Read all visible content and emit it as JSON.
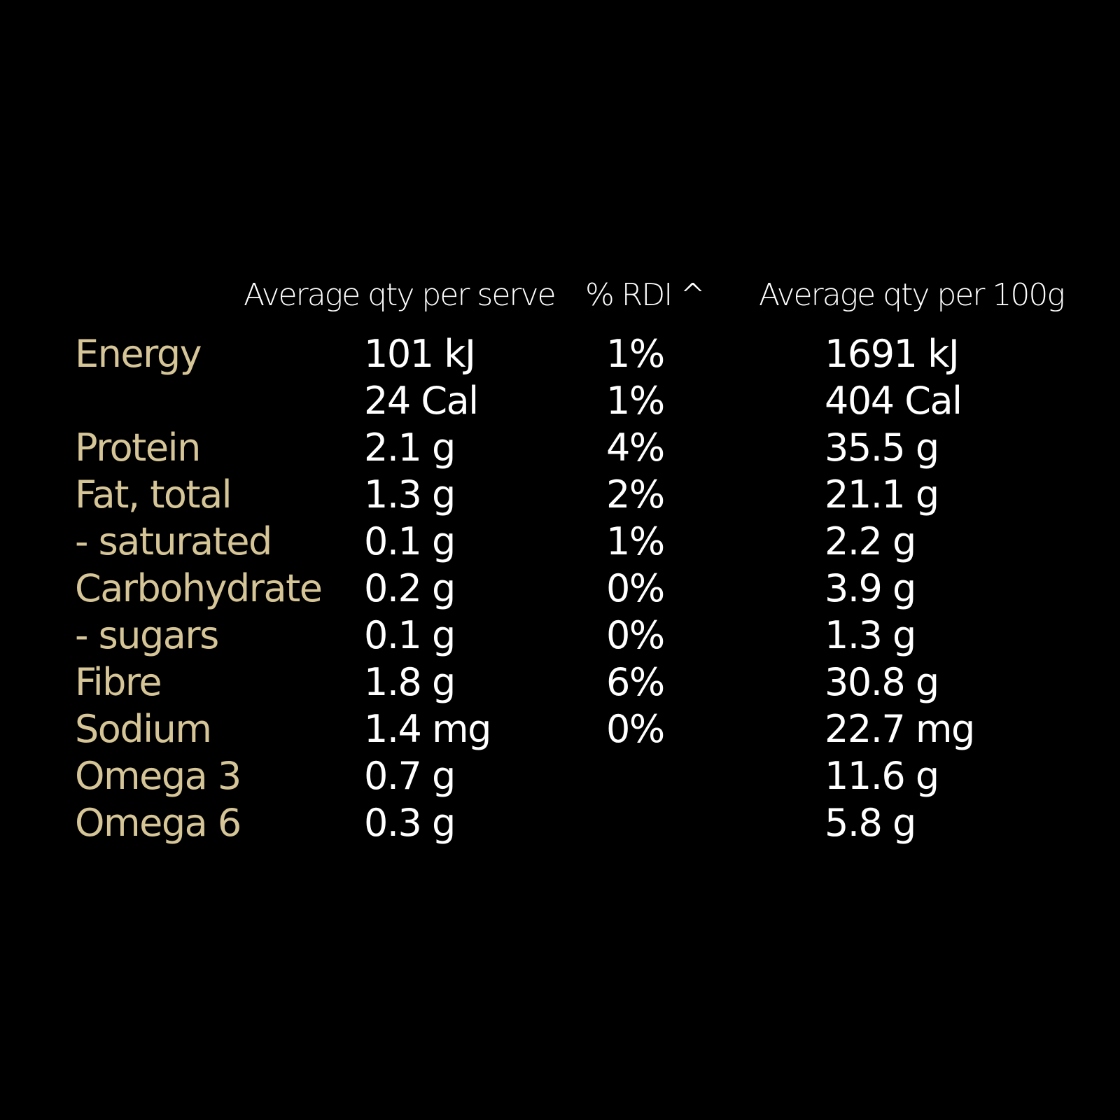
{
  "colors": {
    "background": "#000000",
    "label": "#d5c597",
    "value": "#ffffff"
  },
  "headers": {
    "per_serve": "Average qty per serve",
    "rdi": "% RDI ^",
    "per_100g": "Average qty per 100g"
  },
  "rows": [
    {
      "label": "Energy",
      "per_serve": "101 kJ",
      "rdi": "1%",
      "per_100g": "1691 kJ"
    },
    {
      "label": "",
      "per_serve": "24 Cal",
      "rdi": "1%",
      "per_100g": "404 Cal"
    },
    {
      "label": "Protein",
      "per_serve": "2.1 g",
      "rdi": "4%",
      "per_100g": "35.5 g"
    },
    {
      "label": "Fat, total",
      "per_serve": "1.3 g",
      "rdi": "2%",
      "per_100g": "21.1 g"
    },
    {
      "label": "- saturated",
      "per_serve": "0.1 g",
      "rdi": "1%",
      "per_100g": "2.2 g"
    },
    {
      "label": "Carbohydrate",
      "per_serve": "0.2 g",
      "rdi": "0%",
      "per_100g": "3.9 g"
    },
    {
      "label": "- sugars",
      "per_serve": "0.1 g",
      "rdi": "0%",
      "per_100g": "1.3 g"
    },
    {
      "label": "Fibre",
      "per_serve": "1.8 g",
      "rdi": "6%",
      "per_100g": "30.8 g"
    },
    {
      "label": "Sodium",
      "per_serve": "1.4 mg",
      "rdi": "0%",
      "per_100g": "22.7 mg"
    },
    {
      "label": "Omega 3",
      "per_serve": "0.7 g",
      "rdi": "",
      "per_100g": "11.6 g"
    },
    {
      "label": "Omega 6",
      "per_serve": "0.3 g",
      "rdi": "",
      "per_100g": "5.8 g"
    }
  ]
}
